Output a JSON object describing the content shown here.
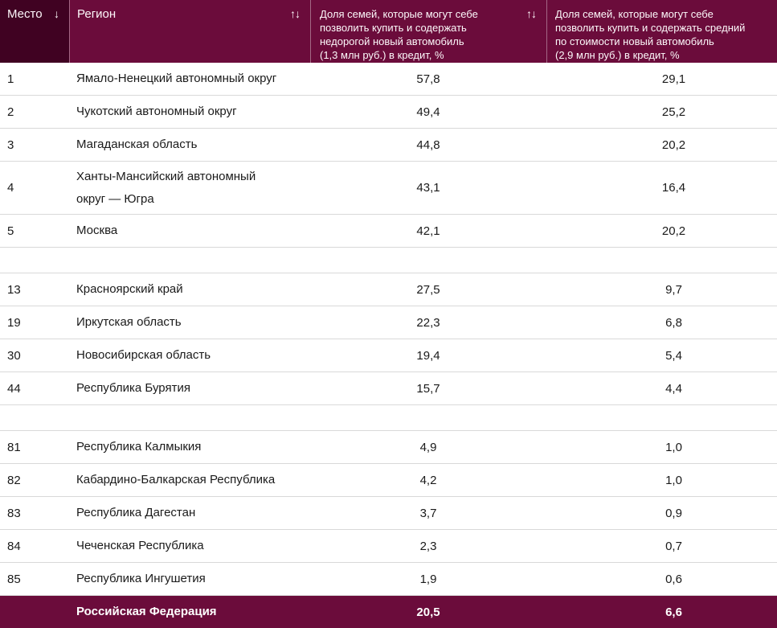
{
  "colors": {
    "header_dark": "#400222",
    "header_main": "#6B0C3B",
    "footer_bg": "#6B0C3B",
    "row_divider": "#D9D9D9",
    "body_text": "#1A1A1A",
    "header_text": "#FFFFFF"
  },
  "table": {
    "columns": [
      {
        "label": "Место",
        "sort_icon": "↓"
      },
      {
        "label": "Регион",
        "sort_icon": "↑↓"
      },
      {
        "label": "Доля семей, которые могут себе\nпозволить купить и содержать\nнедорогой новый автомобиль\n(1,3 млн руб.) в кредит, %",
        "sort_icon": "↑↓"
      },
      {
        "label": "Доля семей, которые могут себе\nпозволить купить и содержать средний\nпо стоимости новый автомобиль\n(2,9 млн руб.) в кредит, %",
        "sort_icon": ""
      }
    ],
    "rows": [
      {
        "type": "data",
        "place": "1",
        "region": "Ямало-Ненецкий автономный округ",
        "cheap": "57,8",
        "mid": "29,1"
      },
      {
        "type": "data",
        "place": "2",
        "region": "Чукотский автономный округ",
        "cheap": "49,4",
        "mid": "25,2"
      },
      {
        "type": "data",
        "place": "3",
        "region": "Магаданская область",
        "cheap": "44,8",
        "mid": "20,2"
      },
      {
        "type": "data",
        "place": "4",
        "region": "Ханты-Мансийский автономный\nокруг — Югра",
        "cheap": "43,1",
        "mid": "16,4"
      },
      {
        "type": "data",
        "place": "5",
        "region": "Москва",
        "cheap": "42,1",
        "mid": "20,2"
      },
      {
        "type": "gap"
      },
      {
        "type": "data",
        "place": "13",
        "region": "Красноярский край",
        "cheap": "27,5",
        "mid": "9,7"
      },
      {
        "type": "data",
        "place": "19",
        "region": "Иркутская область",
        "cheap": "22,3",
        "mid": "6,8"
      },
      {
        "type": "data",
        "place": "30",
        "region": "Новосибирская область",
        "cheap": "19,4",
        "mid": "5,4"
      },
      {
        "type": "data",
        "place": "44",
        "region": "Республика Бурятия",
        "cheap": "15,7",
        "mid": "4,4"
      },
      {
        "type": "gap"
      },
      {
        "type": "data",
        "place": "81",
        "region": "Республика Калмыкия",
        "cheap": "4,9",
        "mid": "1,0"
      },
      {
        "type": "data",
        "place": "82",
        "region": "Кабардино-Балкарская Республика",
        "cheap": "4,2",
        "mid": "1,0"
      },
      {
        "type": "data",
        "place": "83",
        "region": "Республика Дагестан",
        "cheap": "3,7",
        "mid": "0,9"
      },
      {
        "type": "data",
        "place": "84",
        "region": "Чеченская Республика",
        "cheap": "2,3",
        "mid": "0,7"
      },
      {
        "type": "data",
        "place": "85",
        "region": "Республика Ингушетия",
        "cheap": "1,9",
        "mid": "0,6"
      }
    ],
    "footer": {
      "region": "Российская Федерация",
      "cheap": "20,5",
      "mid": "6,6"
    }
  }
}
